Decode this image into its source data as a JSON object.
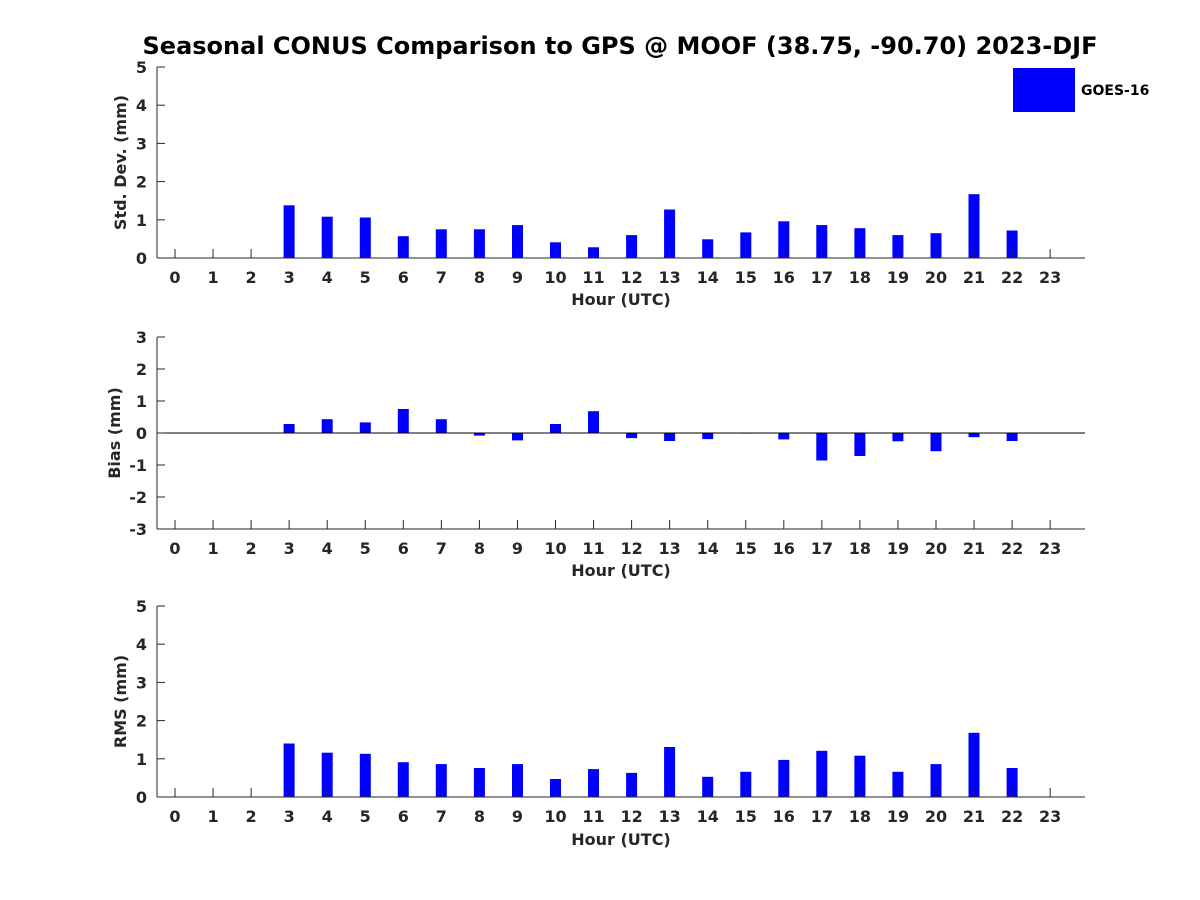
{
  "figure": {
    "title": "Seasonal CONUS Comparison to GPS @ MOOF (38.75, -90.70) 2023-DJF",
    "legend": {
      "label": "GOES-16",
      "color": "#0000ff",
      "placement": "top-right"
    }
  },
  "chart_data": [
    {
      "type": "bar",
      "name": "std-dev",
      "xlabel": "Hour (UTC)",
      "ylabel": "Std. Dev. (mm)",
      "ylim": [
        0,
        5
      ],
      "yticks": [
        0,
        1,
        2,
        3,
        4,
        5
      ],
      "x": [
        0,
        1,
        2,
        3,
        4,
        5,
        6,
        7,
        8,
        9,
        10,
        11,
        12,
        13,
        14,
        15,
        16,
        17,
        18,
        19,
        20,
        21,
        22,
        23
      ],
      "series": [
        {
          "name": "GOES-16",
          "color": "#0000ff",
          "values": [
            null,
            null,
            null,
            1.38,
            1.08,
            1.06,
            0.57,
            0.75,
            0.75,
            0.86,
            0.41,
            0.28,
            0.6,
            1.27,
            0.49,
            0.67,
            0.96,
            0.86,
            0.78,
            0.6,
            0.65,
            1.67,
            0.72,
            null
          ]
        }
      ],
      "grid": false
    },
    {
      "type": "bar",
      "name": "bias",
      "xlabel": "Hour (UTC)",
      "ylabel": "Bias (mm)",
      "ylim": [
        -3,
        3
      ],
      "yticks": [
        -3,
        -2,
        -1,
        0,
        1,
        2,
        3
      ],
      "x": [
        0,
        1,
        2,
        3,
        4,
        5,
        6,
        7,
        8,
        9,
        10,
        11,
        12,
        13,
        14,
        15,
        16,
        17,
        18,
        19,
        20,
        21,
        22,
        23
      ],
      "series": [
        {
          "name": "GOES-16",
          "color": "#0000ff",
          "values": [
            null,
            null,
            null,
            0.28,
            0.43,
            0.33,
            0.75,
            0.43,
            -0.08,
            -0.23,
            0.28,
            0.68,
            -0.16,
            -0.25,
            -0.19,
            0.0,
            -0.2,
            -0.86,
            -0.72,
            -0.26,
            -0.57,
            -0.13,
            -0.25,
            null
          ]
        }
      ],
      "grid": false
    },
    {
      "type": "bar",
      "name": "rms",
      "xlabel": "Hour (UTC)",
      "ylabel": "RMS (mm)",
      "ylim": [
        0,
        5
      ],
      "yticks": [
        0,
        1,
        2,
        3,
        4,
        5
      ],
      "x": [
        0,
        1,
        2,
        3,
        4,
        5,
        6,
        7,
        8,
        9,
        10,
        11,
        12,
        13,
        14,
        15,
        16,
        17,
        18,
        19,
        20,
        21,
        22,
        23
      ],
      "series": [
        {
          "name": "GOES-16",
          "color": "#0000ff",
          "values": [
            null,
            null,
            null,
            1.4,
            1.16,
            1.13,
            0.91,
            0.86,
            0.76,
            0.86,
            0.47,
            0.73,
            0.63,
            1.31,
            0.53,
            0.66,
            0.97,
            1.21,
            1.08,
            0.66,
            0.86,
            1.68,
            0.76,
            null
          ]
        }
      ],
      "grid": false
    }
  ]
}
